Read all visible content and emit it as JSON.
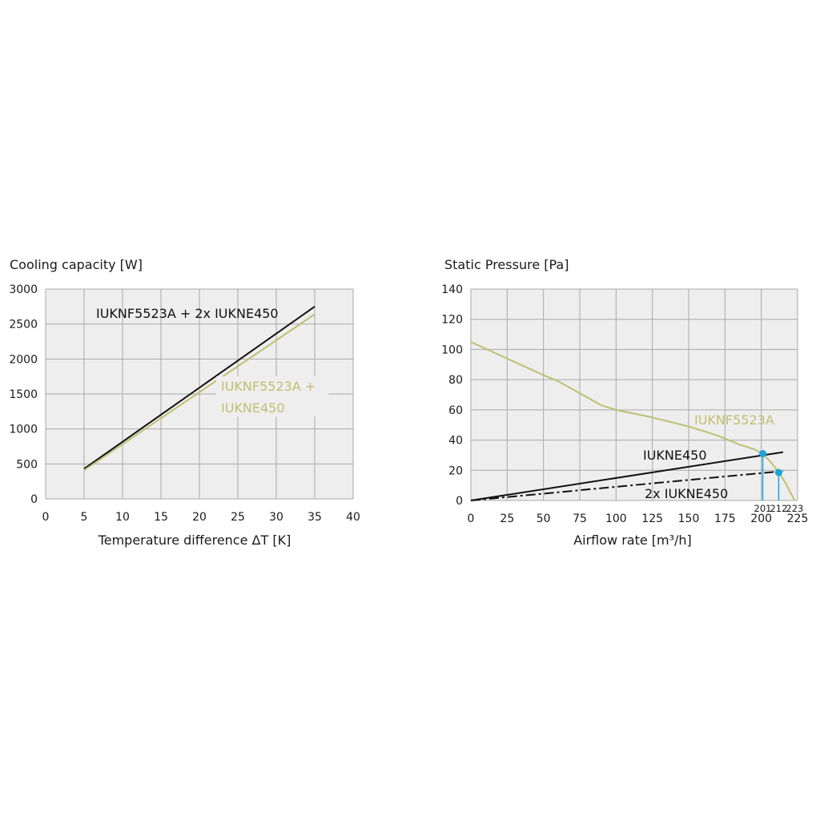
{
  "colors": {
    "background": "#ffffff",
    "plot_background": "#eeeeee",
    "grid": "#a8a8a8",
    "black_series": "#111111",
    "olive_series": "#bfbf72",
    "operating_point": "#1aa3dc"
  },
  "chart_data": [
    {
      "type": "line",
      "title": "Cooling capacity [W]",
      "xlabel": "Temperature difference ΔT [K]",
      "ylabel": "Cooling capacity [W]",
      "xlim": [
        0,
        40
      ],
      "ylim": [
        0,
        3000
      ],
      "x_ticks": [
        "0",
        "5",
        "10",
        "15",
        "20",
        "25",
        "30",
        "35",
        "40"
      ],
      "y_ticks": [
        "0",
        "500",
        "1000",
        "1500",
        "2000",
        "2500",
        "3000"
      ],
      "grid": true,
      "series": [
        {
          "name": "IUKNF5523A + 2x IUKNE450",
          "color": "#111111",
          "x": [
            5,
            35
          ],
          "y": [
            430,
            2750
          ]
        },
        {
          "name_lines": [
            "IUKNF5523A +",
            "IUKNE450"
          ],
          "color": "#bfbf72",
          "x": [
            5,
            35
          ],
          "y": [
            410,
            2640
          ]
        }
      ]
    },
    {
      "type": "line",
      "title": "Static Pressure [Pa]",
      "xlabel": "Airflow rate [m³/h]",
      "ylabel": "Static Pressure [Pa]",
      "xlim": [
        0,
        225
      ],
      "ylim": [
        0,
        140
      ],
      "x_ticks": [
        "0",
        "25",
        "50",
        "75",
        "100",
        "125",
        "150",
        "175",
        "200",
        "225"
      ],
      "y_ticks": [
        "0",
        "20",
        "40",
        "60",
        "80",
        "100",
        "120",
        "140"
      ],
      "grid": true,
      "series": [
        {
          "name": "IUKNF5523A",
          "color": "#bfbf72",
          "style": "solid",
          "x": [
            0,
            25,
            50,
            60,
            75,
            90,
            100,
            125,
            150,
            170,
            185,
            195,
            201,
            206,
            212,
            217,
            223
          ],
          "y": [
            105,
            94,
            83,
            79,
            71,
            63,
            60,
            55,
            49,
            43,
            37,
            34,
            31,
            26,
            19,
            11,
            0
          ]
        },
        {
          "name": "IUKNE450",
          "color": "#111111",
          "style": "solid",
          "x": [
            0,
            215
          ],
          "y": [
            0,
            32
          ]
        },
        {
          "name": "2x IUKNE450",
          "color": "#111111",
          "style": "dashdot",
          "x": [
            0,
            215
          ],
          "y": [
            0,
            19.5
          ]
        }
      ],
      "operating_points": [
        {
          "x": 201,
          "y": 31,
          "label": "201"
        },
        {
          "x": 212,
          "y": 18.5,
          "label": "212"
        }
      ],
      "end_annotation": {
        "x": 223,
        "label": "223"
      }
    }
  ]
}
